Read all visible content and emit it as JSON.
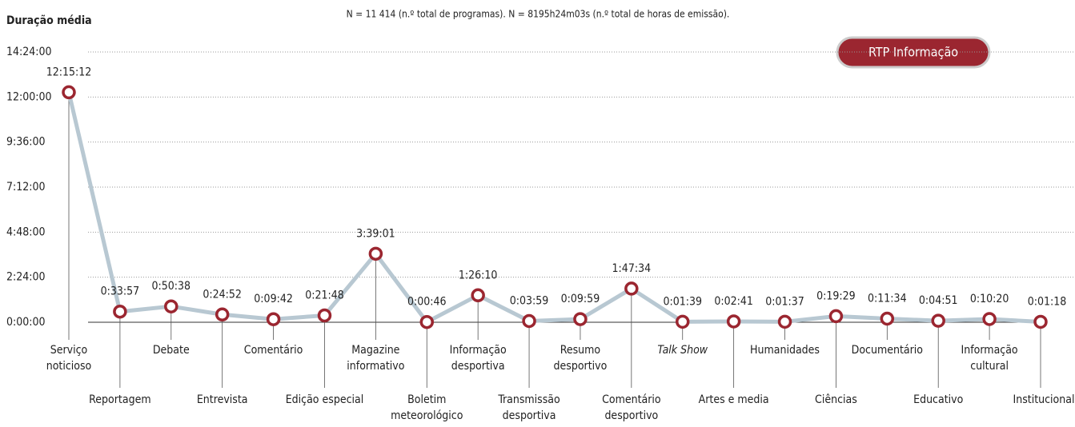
{
  "chart_data": {
    "type": "line",
    "title": "Duração média",
    "subtitle": "N = 11 414 (n.º total de programas). N = 8195h24m03s (n.º total de horas de emissão).",
    "badge": "RTP Informação",
    "categories": [
      "Serviço\nnoticioso",
      "Reportagem",
      "Debate",
      "Entrevista",
      "Comentário",
      "Edição especial",
      "Magazine\ninformativo",
      "Boletim\nmeteorológico",
      "Informação\ndesportiva",
      "Transmissão\ndesportiva",
      "Resumo\ndesportivo",
      "Comentário\ndesportivo",
      "Talk Show",
      "Artes e media",
      "Humanidades",
      "Ciências",
      "Documentário",
      "Educativo",
      "Informação\ncultural",
      "Institucional"
    ],
    "series": [
      {
        "name": "RTP Informação",
        "color": "#b8c8d2",
        "marker_color": "#9b2630",
        "values": [
          44112,
          2037,
          3038,
          1492,
          582,
          1308,
          13141,
          46,
          5170,
          239,
          599,
          6454,
          99,
          161,
          97,
          1169,
          694,
          291,
          620,
          78
        ],
        "value_labels": [
          "12:15:12",
          "0:33:57",
          "0:50:38",
          "0:24:52",
          "0:09:42",
          "0:21:48",
          "3:39:01",
          "0:00:46",
          "1:26:10",
          "0:03:59",
          "0:09:59",
          "1:47:34",
          "0:01:39",
          "0:02:41",
          "0:01:37",
          "0:19:29",
          "0:11:34",
          "0:04:51",
          "0:10:20",
          "0:01:18"
        ]
      }
    ],
    "ylim": [
      0,
      51840
    ],
    "yticks": [
      {
        "value": 0,
        "label": "0:00:00"
      },
      {
        "value": 8640,
        "label": "2:24:00"
      },
      {
        "value": 17280,
        "label": "4:48:00"
      },
      {
        "value": 25920,
        "label": "7:12:00"
      },
      {
        "value": 34560,
        "label": "9:36:00"
      },
      {
        "value": 43200,
        "label": "12:00:00"
      },
      {
        "value": 51840,
        "label": "14:24:00"
      }
    ],
    "grid": true
  }
}
